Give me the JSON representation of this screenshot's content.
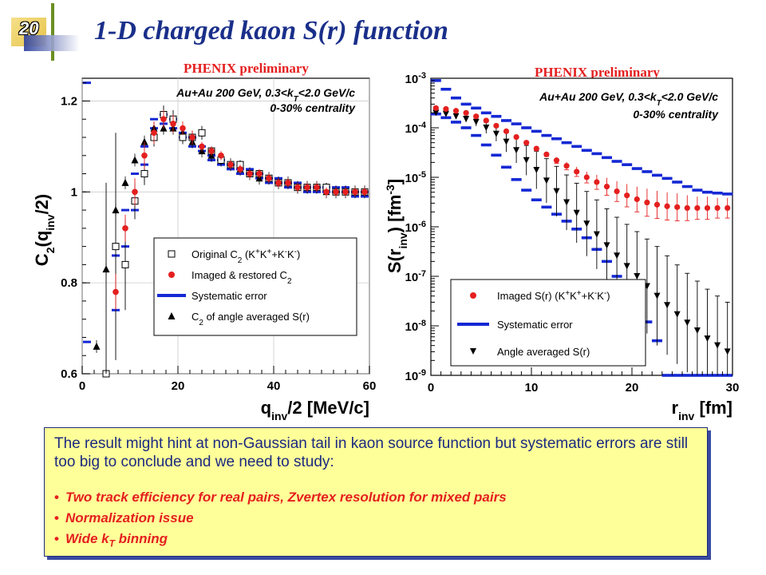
{
  "slide": {
    "number": "20",
    "title": "1-D charged kaon S(r) function"
  },
  "summary": {
    "text": "The result might hint at non-Gaussian tail in kaon source function but systematic errors are still too big to conclude and we need to study:",
    "bullets": [
      "Two track efficiency for real pairs, Zvertex resolution for mixed pairs",
      "Normalization issue",
      "Wide k_T binning"
    ]
  },
  "colors": {
    "title": "#1a2f8a",
    "imaged": "#e41f1f",
    "systematic": "#1428d4",
    "box_fill": "#ffff99",
    "text_blue": "#1c2a80"
  },
  "chart_data": [
    {
      "type": "scatter",
      "preliminary": "PHENIX preliminary",
      "annotation": [
        "Au+Au 200 GeV, 0.3<k_T<2.0 GeV/c",
        "0-30% centrality"
      ],
      "xlabel": "q_inv/2 [MeV/c]",
      "ylabel": "C_2(q_inv/2)",
      "xlim": [
        0,
        60
      ],
      "ylim": [
        0.6,
        1.25
      ],
      "xticks": [
        0,
        20,
        40,
        60
      ],
      "yticks": [
        0.6,
        0.8,
        1.0,
        1.2
      ],
      "ytick_labels": [
        "0.6",
        "0.8",
        "1",
        "1.2"
      ],
      "legend_position": "bottom-right",
      "series": [
        {
          "name": "Original C_2 (K+K+ + K-K-)",
          "marker": "open-square",
          "x": [
            5,
            7,
            9,
            11,
            13,
            15,
            17,
            19,
            21,
            23,
            25,
            27,
            29,
            31,
            33,
            35,
            37,
            39,
            41,
            43,
            45,
            47,
            49,
            51,
            53,
            55,
            57,
            59
          ],
          "y": [
            0.57,
            0.88,
            0.84,
            0.98,
            1.04,
            1.12,
            1.17,
            1.16,
            1.12,
            1.12,
            1.13,
            1.09,
            1.07,
            1.06,
            1.06,
            1.04,
            1.04,
            1.03,
            1.02,
            1.02,
            1.01,
            1.01,
            1.01,
            1.01,
            1.0,
            1.0,
            1.0,
            1.0
          ],
          "err": [
            0.45,
            0.25,
            0.1,
            0.04,
            0.025,
            0.02,
            0.02,
            0.02,
            0.015,
            0.015,
            0.015,
            0.01,
            0.01,
            0.01,
            0.01,
            0.01,
            0.01,
            0.01,
            0.01,
            0.01,
            0.01,
            0.01,
            0.01,
            0.01,
            0.01,
            0.01,
            0.01,
            0.01
          ]
        },
        {
          "name": "Imaged & restored C_2",
          "marker": "filled-circle",
          "x": [
            7,
            9,
            11,
            13,
            15,
            17,
            19,
            21,
            23,
            25,
            27,
            29,
            31,
            33,
            35,
            37,
            39,
            41,
            43,
            45,
            47,
            49,
            51,
            53,
            55,
            57,
            59
          ],
          "y": [
            0.78,
            0.92,
            1.0,
            1.08,
            1.13,
            1.16,
            1.15,
            1.14,
            1.12,
            1.1,
            1.09,
            1.08,
            1.06,
            1.05,
            1.04,
            1.04,
            1.03,
            1.02,
            1.02,
            1.01,
            1.01,
            1.01,
            1.0,
            1.0,
            1.0,
            1.0,
            1.0
          ],
          "err": [
            0.04,
            0.03,
            0.03,
            0.03,
            0.025,
            0.02,
            0.02,
            0.015,
            0.015,
            0.01,
            0.01,
            0.01,
            0.01,
            0.01,
            0.01,
            0.01,
            0.01,
            0.01,
            0.01,
            0.01,
            0.01,
            0.01,
            0.01,
            0.01,
            0.01,
            0.01,
            0.01
          ]
        },
        {
          "name": "Systematic error",
          "marker": "blue-dash",
          "x": [
            1,
            1,
            7,
            7,
            9,
            9,
            11,
            11,
            13,
            13,
            15,
            15,
            17,
            17,
            19,
            19,
            21,
            21,
            23,
            23,
            25,
            25,
            27,
            27,
            29,
            29,
            31,
            31,
            33,
            33,
            35,
            35,
            37,
            37,
            39,
            39,
            41,
            41,
            43,
            43,
            45,
            45,
            47,
            47,
            49,
            49,
            51,
            51,
            53,
            53,
            55,
            55,
            57,
            57,
            59,
            59
          ],
          "y": [
            1.24,
            0.67,
            0.86,
            0.74,
            0.96,
            0.88,
            1.04,
            0.96,
            1.1,
            1.06,
            1.16,
            1.14,
            1.17,
            1.15,
            1.16,
            1.14,
            1.13,
            1.12,
            1.12,
            1.1,
            1.1,
            1.09,
            1.08,
            1.07,
            1.07,
            1.06,
            1.06,
            1.05,
            1.05,
            1.04,
            1.05,
            1.04,
            1.04,
            1.03,
            1.03,
            1.02,
            1.03,
            1.02,
            1.02,
            1.01,
            1.02,
            1.01,
            1.01,
            1.0,
            1.01,
            1.0,
            1.01,
            1.0,
            1.01,
            1.0,
            1.01,
            1.0,
            1.0,
            0.99,
            1.0,
            0.99
          ]
        },
        {
          "name": "C_2 of angle averaged S(r)",
          "marker": "filled-triangle-up",
          "x": [
            3,
            5,
            7,
            9,
            11,
            13,
            15,
            17,
            19,
            21,
            23,
            25,
            27,
            29,
            31,
            33,
            35,
            37,
            39,
            41,
            43,
            45,
            47,
            49,
            51,
            53,
            55,
            57,
            59
          ],
          "y": [
            0.66,
            0.83,
            0.96,
            1.02,
            1.07,
            1.11,
            1.14,
            1.14,
            1.14,
            1.13,
            1.11,
            1.09,
            1.08,
            1.07,
            1.06,
            1.05,
            1.04,
            1.03,
            1.03,
            1.02,
            1.02,
            1.01,
            1.01,
            1.01,
            1.0,
            1.0,
            1.0,
            1.0,
            1.0
          ]
        }
      ]
    },
    {
      "type": "scatter",
      "preliminary": "PHENIX preliminary",
      "annotation": [
        "Au+Au 200 GeV, 0.3<k_T<2.0 GeV/c",
        "0-30% centrality"
      ],
      "xlabel": "r_inv [fm]",
      "ylabel": "S(r_inv) [fm^-3]",
      "xlim": [
        0,
        30
      ],
      "ylim": [
        1e-09,
        0.001
      ],
      "yscale": "log",
      "xticks": [
        0,
        10,
        20,
        30
      ],
      "yticks": [
        1e-09,
        1e-08,
        1e-07,
        1e-06,
        1e-05,
        0.0001,
        0.001
      ],
      "legend_position": "bottom-left",
      "series": [
        {
          "name": "Imaged S(r) (K+K+ + K-K-)",
          "marker": "filled-circle",
          "x": [
            0.5,
            1.5,
            2.5,
            3.5,
            4.5,
            5.5,
            6.5,
            7.5,
            8.5,
            9.5,
            10.5,
            11.5,
            12.5,
            13.5,
            14.5,
            15.5,
            16.5,
            17.5,
            18.5,
            19.5,
            20.5,
            21.5,
            22.5,
            23.5,
            24.5,
            25.5,
            26.5,
            27.5,
            28.5,
            29.5
          ],
          "y": [
            0.00025,
            0.00024,
            0.00022,
            0.0002,
            0.00017,
            0.00014,
            0.00011,
            8.5e-05,
            6.5e-05,
            5e-05,
            3.8e-05,
            2.9e-05,
            2.2e-05,
            1.7e-05,
            1.3e-05,
            1e-05,
            8e-06,
            6.5e-06,
            5.2e-06,
            4.3e-06,
            3.6e-06,
            3.1e-06,
            2.8e-06,
            2.6e-06,
            2.5e-06,
            2.4e-06,
            2.4e-06,
            2.4e-06,
            2.4e-06,
            2.4e-06
          ],
          "err_factor": [
            1.05,
            1.05,
            1.05,
            1.05,
            1.05,
            1.05,
            1.05,
            1.05,
            1.05,
            1.05,
            1.1,
            1.1,
            1.15,
            1.2,
            1.25,
            1.3,
            1.4,
            1.5,
            1.6,
            1.7,
            1.8,
            1.9,
            1.9,
            1.9,
            1.9,
            1.8,
            1.7,
            1.7,
            1.6,
            1.6
          ]
        },
        {
          "name": "Systematic error",
          "marker": "blue-dash",
          "x": [
            0.5,
            1.5,
            2.5,
            3.5,
            4.5,
            5.5,
            6.5,
            7.5,
            8.5,
            9.5,
            10.5,
            11.5,
            12.5,
            13.5,
            14.5,
            15.5,
            16.5,
            17.5,
            18.5,
            19.5,
            20.5,
            21.5,
            22.5,
            23.5,
            24.5,
            25.5,
            26.5,
            27.5,
            28.5,
            29.5
          ],
          "y_upper": [
            0.0009,
            0.0006,
            0.0004,
            0.0003,
            0.00025,
            0.0002,
            0.00017,
            0.00014,
            0.00012,
            0.0001,
            8.5e-05,
            7e-05,
            6e-05,
            5e-05,
            4.2e-05,
            3.5e-05,
            3e-05,
            2.5e-05,
            2.1e-05,
            1.8e-05,
            1.5e-05,
            1.3e-05,
            1.1e-05,
            9.5e-06,
            8e-06,
            6.5e-06,
            5.5e-06,
            5e-06,
            4.8e-06,
            4.6e-06
          ],
          "y_lower": [
            0.00019,
            0.00016,
            0.00013,
            0.0001,
            7e-05,
            4.5e-05,
            2.8e-05,
            1.6e-05,
            9e-06,
            5.5e-06,
            3.5e-06,
            2.5e-06,
            1.8e-06,
            1.3e-06,
            9e-07,
            6e-07,
            3.5e-07,
            2e-07,
            1e-07,
            5e-08,
            2.5e-08,
            1.2e-08,
            5e-09,
            1e-09,
            1e-09,
            1e-09,
            1e-09,
            1e-09,
            1e-09,
            1e-09
          ]
        },
        {
          "name": "Angle averaged S(r)",
          "marker": "filled-triangle-down",
          "x": [
            0.5,
            1.5,
            2.5,
            3.5,
            4.5,
            5.5,
            6.5,
            7.5,
            8.5,
            9.5,
            10.5,
            11.5,
            12.5,
            13.5,
            14.5,
            15.5,
            16.5,
            17.5,
            18.5,
            19.5,
            20.5,
            21.5,
            22.5,
            23.5,
            24.5,
            25.5,
            26.5,
            27.5,
            28.5,
            29.5
          ],
          "y": [
            0.0002,
            0.00019,
            0.00017,
            0.00015,
            0.00013,
            0.0001,
            7.5e-05,
            5.2e-05,
            3.5e-05,
            2.2e-05,
            1.4e-05,
            8.5e-06,
            5.2e-06,
            3.1e-06,
            1.9e-06,
            1.15e-06,
            7e-07,
            4.2e-07,
            2.6e-07,
            1.6e-07,
            1e-07,
            6.3e-08,
            4e-08,
            2.6e-08,
            1.7e-08,
            1.15e-08,
            8e-09,
            5.5e-09,
            4e-09,
            3e-09
          ],
          "err_factor": [
            1.05,
            1.05,
            1.1,
            1.15,
            1.2,
            1.3,
            1.4,
            1.6,
            1.8,
            2.0,
            2.4,
            2.8,
            3.2,
            3.6,
            4.0,
            4.5,
            5.0,
            5.5,
            6.0,
            7.0,
            8.0,
            9.0,
            10,
            10,
            10,
            10,
            10,
            10,
            10,
            10
          ]
        }
      ]
    }
  ]
}
